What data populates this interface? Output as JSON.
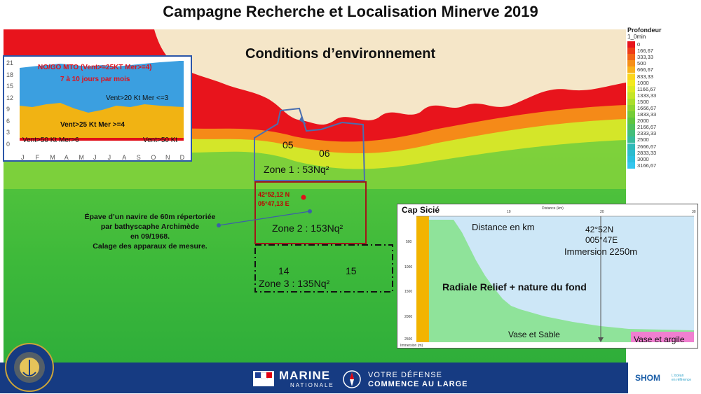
{
  "title": "Campagne Recherche et Localisation  Minerve 2019",
  "env_title": "Conditions d’environnement",
  "legend": {
    "header": "Profondeur",
    "subheader": "1_0min",
    "entries": [
      "0",
      "166,67",
      "333,33",
      "500",
      "666,67",
      "833,33",
      "1000",
      "1166,67",
      "1333,33",
      "1500",
      "1666,67",
      "1833,33",
      "2000",
      "2166,67",
      "2333,33",
      "2500",
      "2666,67",
      "2833,33",
      "3000",
      "3166,67"
    ],
    "colors": [
      "#e8141c",
      "#ef3d17",
      "#f26516",
      "#f68f18",
      "#f9b21b",
      "#fbd51d",
      "#f3ea1f",
      "#ddea23",
      "#c5e528",
      "#aade2c",
      "#8fd532",
      "#75cd38",
      "#5ec53f",
      "#4fc15b",
      "#43be7b",
      "#38bb9b",
      "#2fbab8",
      "#2cbccf",
      "#2bc0e0",
      "#34c6ee"
    ]
  },
  "climate": {
    "nogo": "NO/GO MTO (Vent>=25KT Mer>=4)",
    "days": "7 à 10 jours par mois",
    "v20": "Vent>20 Kt Mer <=3",
    "v25": "Vent>25 Kt Mer >=4",
    "v50_left": "Vent>50 Kt Mer>6",
    "v50_right": "Vent>50 Kt",
    "yticks": [
      "21",
      "18",
      "15",
      "12",
      "9",
      "6",
      "3",
      "0"
    ],
    "months": [
      "J",
      "F",
      "M",
      "A",
      "M",
      "J",
      "J",
      "A",
      "S",
      "O",
      "N",
      "D"
    ],
    "colors": {
      "top": "#3b9fe0",
      "band": "#f1b313",
      "low": "#e0101a"
    }
  },
  "zones": {
    "z1_label": "Zone 1 : 53Nq²",
    "z2_label": "Zone 2 : 153Nq²",
    "z3_label": "Zone 3 : 135Nq²",
    "n05": "05",
    "n06": "06",
    "n14": "14",
    "n15": "15",
    "coord1": "42°52,12 N",
    "coord2": "05°47,13 E"
  },
  "wreck_text": [
    "Épave d’un navire de 60m répertoriée",
    "par bathyscaphe Archimède",
    "en 09/1968.",
    "Calage des apparaux de mesure."
  ],
  "profile": {
    "title": "Cap Sicié",
    "distance_label": "Distance en km",
    "lat": "42°52N",
    "lon": "005°47E",
    "immersion": "Immersion 2250m",
    "radiale": "Radiale Relief + nature du fond",
    "vase_sable": "Vase et Sable",
    "vase_argile": "Vase et argile",
    "small_distance": "Distance (km)",
    "small_xticks": [
      "10",
      "20",
      "30"
    ],
    "small_yticks": [
      "500",
      "1000",
      "1500",
      "2000",
      "2500"
    ],
    "small_footer": "Immersion (m)"
  },
  "footer": {
    "marine": "MARINE",
    "nationale": "NATIONALE",
    "slogan1": "VOTRE DÉFENSE",
    "slogan2": "COMMENCE AU LARGE",
    "shom": "SHOM",
    "shom_sub1": "L'océan",
    "shom_sub2": "en référence"
  }
}
